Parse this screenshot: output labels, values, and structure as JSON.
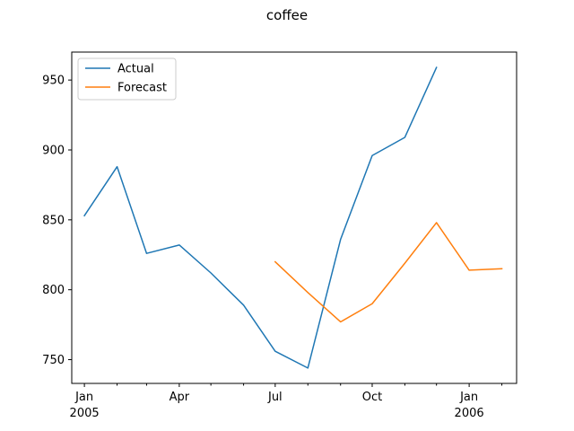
{
  "chart_data": {
    "type": "line",
    "title": "coffee",
    "xlabel": "",
    "ylabel": "",
    "x_range": [
      "2004-12-20",
      "2006-02-15"
    ],
    "ylim": [
      733,
      970
    ],
    "y_ticks": [
      750,
      800,
      850,
      900,
      950
    ],
    "x_major_ticks": [
      {
        "date": "2005-01-01",
        "label": "Jan",
        "sublabel": "2005"
      },
      {
        "date": "2005-04-01",
        "label": "Apr",
        "sublabel": ""
      },
      {
        "date": "2005-07-01",
        "label": "Jul",
        "sublabel": ""
      },
      {
        "date": "2005-10-01",
        "label": "Oct",
        "sublabel": ""
      },
      {
        "date": "2006-01-01",
        "label": "Jan",
        "sublabel": "2006"
      }
    ],
    "x_minor_ticks": [
      "2005-02-01",
      "2005-03-01",
      "2005-05-01",
      "2005-06-01",
      "2005-08-01",
      "2005-09-01",
      "2005-11-01",
      "2005-12-01",
      "2006-02-01"
    ],
    "legend": {
      "placement": "upper-left"
    },
    "series": [
      {
        "name": "Actual",
        "color": "#1f77b4",
        "x": [
          "2005-01-01",
          "2005-02-01",
          "2005-03-01",
          "2005-04-01",
          "2005-05-01",
          "2005-06-01",
          "2005-07-01",
          "2005-08-01",
          "2005-09-01",
          "2005-10-01",
          "2005-11-01",
          "2005-12-01"
        ],
        "values": [
          853,
          888,
          826,
          832,
          812,
          789,
          756,
          744,
          836,
          896,
          909,
          959
        ]
      },
      {
        "name": "Forecast",
        "color": "#ff7f0e",
        "x": [
          "2005-07-01",
          "2005-08-01",
          "2005-09-01",
          "2005-10-01",
          "2005-11-01",
          "2005-12-01",
          "2006-01-01",
          "2006-02-01"
        ],
        "values": [
          820,
          798,
          777,
          790,
          819,
          848,
          814,
          815
        ]
      }
    ]
  }
}
